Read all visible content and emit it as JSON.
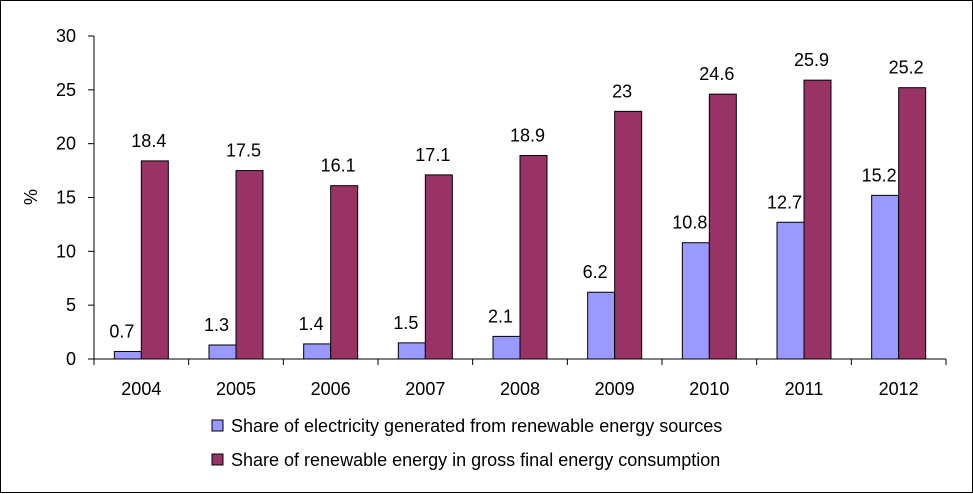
{
  "chart_data": {
    "type": "bar",
    "categories": [
      "2004",
      "2005",
      "2006",
      "2007",
      "2008",
      "2009",
      "2010",
      "2011",
      "2012"
    ],
    "series": [
      {
        "name": "Share of electricity generated from renewable energy sources",
        "values": [
          0.7,
          1.3,
          1.4,
          1.5,
          2.1,
          6.2,
          10.8,
          12.7,
          15.2
        ],
        "labels": [
          "0.7",
          "1.3",
          "1.4",
          "1.5",
          "2.1",
          "6.2",
          "10.8",
          "12.7",
          "15.2"
        ],
        "color": "#9999ff"
      },
      {
        "name": "Share of renewable energy in gross final energy consumption",
        "values": [
          18.4,
          17.5,
          16.1,
          17.1,
          18.9,
          23,
          24.6,
          25.9,
          25.2
        ],
        "labels": [
          "18.4",
          "17.5",
          "16.1",
          "17.1",
          "18.9",
          "23",
          "24.6",
          "25.9",
          "25.2"
        ],
        "color": "#993366"
      }
    ],
    "ylabel": "%",
    "ylim": [
      0,
      30
    ],
    "yticks": [
      "0",
      "5",
      "10",
      "15",
      "20",
      "25",
      "30"
    ],
    "grid": false,
    "legend_position": "bottom"
  }
}
